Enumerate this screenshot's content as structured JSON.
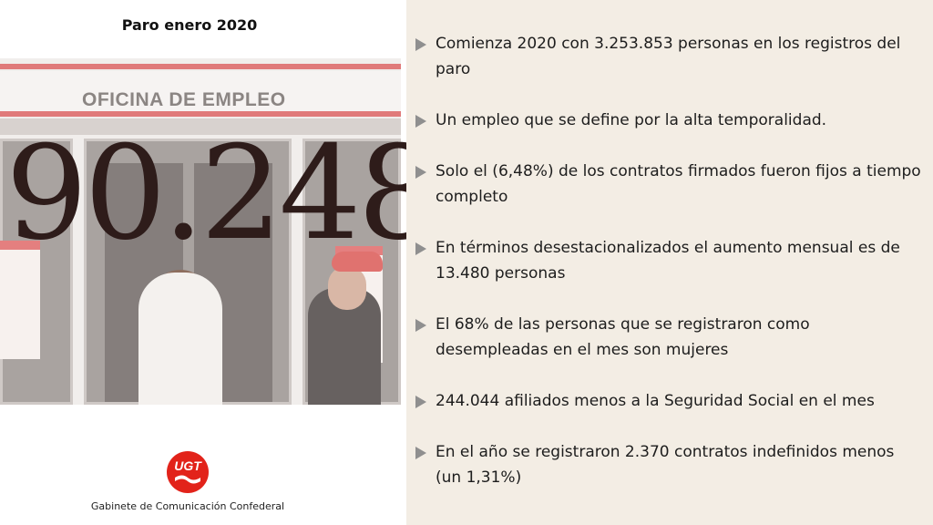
{
  "header": {
    "title": "Paro enero 2020"
  },
  "photo": {
    "sign_text": "OFICINA DE EMPLEO"
  },
  "highlight": {
    "number": "90.248"
  },
  "logo": {
    "text": "UGT",
    "color": "#e2231a"
  },
  "footer": {
    "text": "Gabinete de Comunicación Confederal"
  },
  "bullets": [
    {
      "text": "Comienza 2020 con 3.253.853 personas en los registros del paro"
    },
    {
      "text": "Un empleo que se define por la alta temporalidad."
    },
    {
      "text": "Solo el (6,48%) de los contratos firmados fueron fijos a tiempo completo"
    },
    {
      "text": "En términos desestacionalizados el aumento mensual es de 13.480 personas"
    },
    {
      "text": "El 68% de las personas que se registraron como desempleadas en el mes son mujeres"
    },
    {
      "text": "244.044 afiliados menos a la Seguridad Social en el mes"
    },
    {
      "text": "En el año se registraron 2.370 contratos indefinidos menos (un 1,31%)"
    }
  ]
}
